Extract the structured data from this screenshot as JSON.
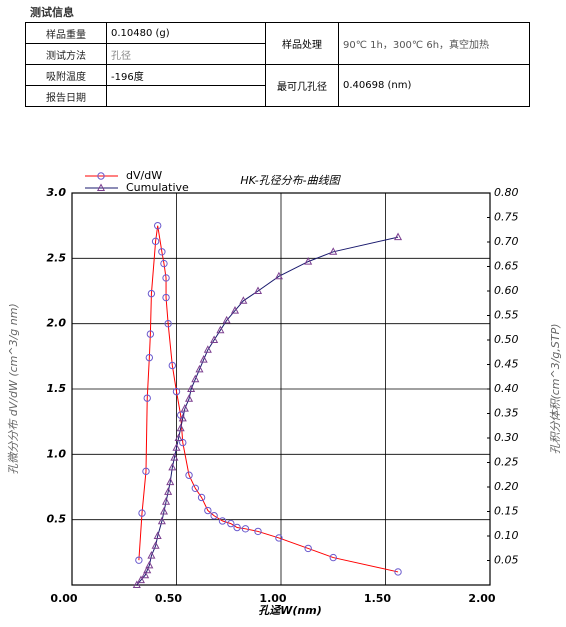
{
  "info": {
    "title": "测试信息",
    "rows": [
      [
        "样品重量",
        "0.10480 (g)"
      ],
      [
        "测试方法",
        "孔径"
      ],
      [
        "吸附温度",
        "-196度"
      ],
      [
        "报告日期"
      ]
    ],
    "right": [
      [
        "样品处理",
        "90℃ 1h，300℃ 6h，真空加热"
      ],
      [
        "最可几孔径",
        "0.40698 (nm)"
      ]
    ]
  },
  "chart_data": {
    "type": "line",
    "title": "HK-孔径分布-曲线图",
    "x_label": "孔迳W(nm)",
    "y_label": "孔微分分布 dV/dW (cm^3/g nm)",
    "y2_label": "孔积分体积(cm^3/g,STP)",
    "xlim": [
      0,
      2
    ],
    "xticks": [
      {
        "value": 0,
        "label": "0.00"
      },
      {
        "value": 0.5,
        "label": "0.50"
      },
      {
        "value": 1,
        "label": "1.00"
      },
      {
        "value": 1.5,
        "label": "1.50"
      },
      {
        "value": 2,
        "label": "2.00"
      }
    ],
    "ylim": [
      0,
      3
    ],
    "yticks": [
      0.5,
      {
        "value": 1,
        "label": "1.0"
      },
      1.5,
      {
        "value": 2,
        "label": "2.0"
      },
      2.5,
      {
        "value": 3,
        "label": "3.0"
      }
    ],
    "y2lim": [
      0,
      0.8
    ],
    "y2ticks": [
      0.05,
      {
        "value": 0.1,
        "label": "0.10"
      },
      0.15,
      {
        "value": 0.2,
        "label": "0.20"
      },
      0.25,
      {
        "value": 0.3,
        "label": "0.30"
      },
      0.35,
      {
        "value": 0.4,
        "label": "0.40"
      },
      0.45,
      {
        "value": 0.5,
        "label": "0.50"
      },
      0.55,
      {
        "value": 0.6,
        "label": "0.60"
      },
      0.65,
      {
        "value": 0.7,
        "label": "0.70"
      },
      0.75,
      {
        "value": 0.8,
        "label": "0.80"
      }
    ],
    "grid": true,
    "legend": "top-left",
    "series": [
      {
        "name": "dV/dW",
        "color": "#ff0000",
        "marker_color": "#6a5acd",
        "marker": "circle",
        "x": [
          0.32,
          0.335,
          0.354,
          0.36,
          0.37,
          0.375,
          0.38,
          0.4,
          0.41,
          0.43,
          0.44,
          0.45,
          0.45,
          0.46,
          0.48,
          0.5,
          0.52,
          0.53,
          0.56,
          0.59,
          0.62,
          0.65,
          0.68,
          0.72,
          0.76,
          0.79,
          0.83,
          0.89,
          0.99,
          1.13,
          1.25,
          1.56
        ],
        "values": [
          0.19,
          0.55,
          0.87,
          1.43,
          1.74,
          1.92,
          2.23,
          2.63,
          2.75,
          2.55,
          2.46,
          2.35,
          2.2,
          2.0,
          1.68,
          1.48,
          1.3,
          1.09,
          0.84,
          0.74,
          0.67,
          0.57,
          0.53,
          0.49,
          0.47,
          0.44,
          0.43,
          0.41,
          0.36,
          0.28,
          0.21,
          0.1
        ]
      },
      {
        "name": "Cumulative",
        "color": "#1a1a6e",
        "marker_color": "#7b3f8f",
        "marker": "triangle",
        "axis": "y2",
        "x": [
          0.31,
          0.33,
          0.35,
          0.36,
          0.37,
          0.38,
          0.4,
          0.41,
          0.43,
          0.44,
          0.45,
          0.46,
          0.47,
          0.48,
          0.49,
          0.5,
          0.51,
          0.52,
          0.53,
          0.54,
          0.56,
          0.57,
          0.59,
          0.61,
          0.63,
          0.65,
          0.68,
          0.71,
          0.74,
          0.78,
          0.82,
          0.89,
          0.99,
          1.13,
          1.25,
          1.56
        ],
        "values": [
          0,
          0.01,
          0.02,
          0.03,
          0.04,
          0.06,
          0.08,
          0.1,
          0.13,
          0.15,
          0.17,
          0.19,
          0.21,
          0.24,
          0.26,
          0.28,
          0.3,
          0.32,
          0.34,
          0.36,
          0.38,
          0.4,
          0.42,
          0.44,
          0.46,
          0.48,
          0.5,
          0.52,
          0.54,
          0.56,
          0.58,
          0.6,
          0.63,
          0.66,
          0.68,
          0.71
        ]
      }
    ]
  }
}
